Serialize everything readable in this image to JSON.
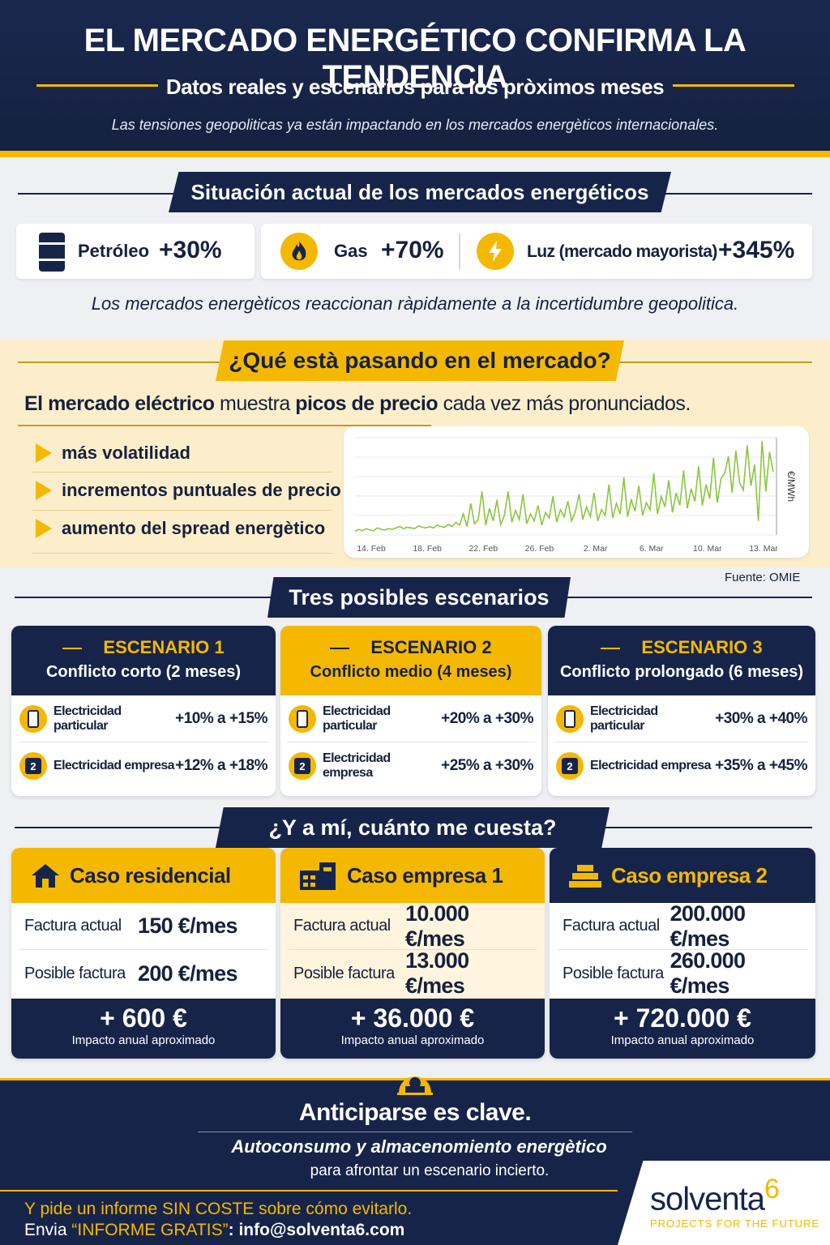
{
  "header": {
    "title": "EL MERCADO ENERGÉTICO CONFIRMA LA TENDENCIA",
    "subtitle": "Datos reales y escenarios para los pròximos meses",
    "tagline": "Las tensiones geopoliticas ya están impactando en los mercados energèticos internacionales."
  },
  "situation": {
    "heading": "Situación actual de los mercados energéticos",
    "metrics": [
      {
        "label": "Petróleo",
        "value": "+30%",
        "icon": "oil-barrel-icon"
      },
      {
        "label": "Gas",
        "value": "+70%",
        "icon": "flame-icon"
      },
      {
        "label": "Luz (mercado mayorista)",
        "value": "+345%",
        "icon": "lightning-icon"
      }
    ],
    "note": "Los mercados energèticos reaccionan ràpidamente a la incertidumbre geopolitica."
  },
  "market": {
    "heading": "¿Qué està pasando en el mercado?",
    "lead": {
      "p1": "El mercado eléctrico",
      "p2": " muestra ",
      "p3": "picos de precio",
      "p4": " cada vez más pronunciados."
    },
    "bullets": [
      "más volatilidad",
      "incrementos puntuales de precio",
      "aumento del spread energètico"
    ],
    "source": "Fuente: OMIE"
  },
  "chart_data": {
    "type": "line",
    "x_ticks": [
      "14. Feb",
      "18. Feb",
      "22. Feb",
      "26. Feb",
      "2. Mar",
      "6. Mar",
      "10. Mar",
      "13. Mar"
    ],
    "ylabel": "€/MWh",
    "series_color": "#8cc63f",
    "series": [
      {
        "values": [
          5,
          8,
          6,
          9,
          7,
          6,
          10,
          8,
          7,
          9,
          8,
          10,
          12,
          9,
          11,
          10,
          9,
          13,
          11,
          10,
          12,
          10,
          14,
          12,
          11,
          15,
          12,
          18,
          14,
          30,
          12,
          45,
          16,
          22,
          62,
          14,
          38,
          20,
          50,
          15,
          28,
          62,
          18,
          35,
          22,
          58,
          16,
          30,
          20,
          42,
          14,
          32,
          24,
          55,
          18,
          36,
          26,
          48,
          20,
          33,
          58,
          22,
          40,
          26,
          60,
          20,
          36,
          28,
          72,
          24,
          45,
          30,
          82,
          26,
          50,
          34,
          70,
          28,
          46,
          36,
          88,
          30,
          55,
          40,
          78,
          32,
          60,
          42,
          92,
          38,
          66,
          48,
          98,
          42,
          72,
          52,
          110,
          46,
          80,
          88,
          112,
          60,
          120,
          74,
          64,
          128,
          70,
          100,
          20,
          134,
          62,
          118,
          90
        ]
      }
    ]
  },
  "scenarios": {
    "heading": "Tres posibles escenarios",
    "items": [
      {
        "num": "ESCENARIO 1",
        "desc": "Conflicto corto (2 meses)",
        "rows": [
          {
            "icon": "battery-icon",
            "label": "Electricidad particular",
            "value": "+10% a +15%"
          },
          {
            "icon": "2",
            "label": "Electricidad empresa",
            "value": "+12% a +18%"
          }
        ]
      },
      {
        "num": "ESCENARIO 2",
        "desc": "Conflicto medio (4 meses)",
        "rows": [
          {
            "icon": "battery-icon",
            "label": "Electricidad particular",
            "value": "+20% a +30%"
          },
          {
            "icon": "2",
            "label": "Electricidad empresa",
            "value": "+25% a +30%"
          }
        ]
      },
      {
        "num": "ESCENARIO 3",
        "desc": "Conflicto prolongado (6 meses)",
        "rows": [
          {
            "icon": "battery-icon",
            "label": "Electricidad particular",
            "value": "+30% a +40%"
          },
          {
            "icon": "2",
            "label": "Electricidad empresa",
            "value": "+35% a +45%"
          }
        ]
      }
    ]
  },
  "costs": {
    "heading": "¿Y a mí, cuánto me cuesta?",
    "items": [
      {
        "title": "Caso residencial",
        "icon": "house-icon",
        "current_label": "Factura actual",
        "current": "150 €/mes",
        "future_label": "Posible factura",
        "future": "200 €/mes",
        "impact": "+ 600 €",
        "impact_label": "Impacto anual aproximado"
      },
      {
        "title": "Caso empresa 1",
        "icon": "building-icon",
        "current_label": "Factura actual",
        "current": "10.000 €/mes",
        "future_label": "Posible factura",
        "future": "13.000 €/mes",
        "impact": "+ 36.000 €",
        "impact_label": "Impacto anual aproximado"
      },
      {
        "title": "Caso empresa 2",
        "icon": "factory-icon",
        "current_label": "Factura actual",
        "current": "200.000 €/mes",
        "future_label": "Posible factura",
        "future": "260.000 €/mes",
        "impact": "+ 720.000 €",
        "impact_label": "Impacto anual aproximado"
      }
    ]
  },
  "footer": {
    "headline": "Anticiparse es clave.",
    "subline": "Autoconsumo y almacenomiento energètico",
    "subline2": "para afrontar un escenario incierto.",
    "cta": "Y pide un informe SIN COSTE sobre cómo evitarlo.",
    "cta2_prefix": "Envia ",
    "cta2_quote": "“INFORME GRATIS”",
    "cta2_suffix": ": info@solventa6.com",
    "logo_text": "solventa",
    "logo_num": "6",
    "logo_tagline": "PROJECTS FOR THE FUTURE"
  }
}
